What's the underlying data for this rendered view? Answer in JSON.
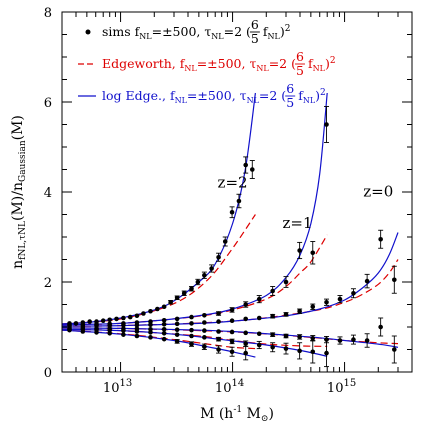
{
  "chart_data": {
    "type": "scatter",
    "x_scale": "log",
    "xlim": [
      3000000000000.0,
      4000000000000000.0
    ],
    "ylim": [
      0,
      8
    ],
    "xlabel": "M (h⁻¹ M⊙)",
    "ylabel": "n_{fNL,τNL}(M)/n_{Gaussian}(M)",
    "x_ticks": [
      {
        "value": 10000000000000.0,
        "base": "10",
        "exp": "13"
      },
      {
        "value": 100000000000000.0,
        "base": "10",
        "exp": "14"
      },
      {
        "value": 1000000000000000.0,
        "base": "10",
        "exp": "15"
      }
    ],
    "y_ticks": [
      "0",
      "2",
      "4",
      "6",
      "8"
    ],
    "y_tick_values": [
      0,
      2,
      4,
      6,
      8
    ],
    "legend": {
      "position": "top-left",
      "entries": [
        {
          "marker": "dot",
          "color": "#000000",
          "name": "sims",
          "sym": "f",
          "sub1": "NL",
          "val1": "=±500,",
          "tau": "τ",
          "sub2": "NL",
          "val2": "=2",
          "frac_num": "6",
          "frac_den": "5",
          "paren_f": "f",
          "paren_sub": "NL",
          "sq": "2"
        },
        {
          "marker": "dashed",
          "color": "#dd0000",
          "name": "Edgeworth,",
          "sym": "f",
          "sub1": "NL",
          "val1": "=±500,",
          "tau": "τ",
          "sub2": "NL",
          "val2": "=2",
          "frac_num": "6",
          "frac_den": "5",
          "paren_f": "f",
          "paren_sub": "NL",
          "sq": "2"
        },
        {
          "marker": "solid",
          "color": "#1111cc",
          "name": "log Edge.,",
          "sym": "f",
          "sub1": "NL",
          "val1": "=±500,",
          "tau": "τ",
          "sub2": "NL",
          "val2": "=2",
          "frac_num": "6",
          "frac_den": "5",
          "paren_f": "f",
          "paren_sub": "NL",
          "sq": "2"
        }
      ]
    },
    "annotations": [
      {
        "text": "z=2",
        "x": 100000000000000.0,
        "y": 4.1
      },
      {
        "text": "z=1",
        "x": 380000000000000.0,
        "y": 3.2
      },
      {
        "text": "z=0",
        "x": 2000000000000000.0,
        "y": 3.9
      }
    ],
    "sims": [
      {
        "name": "z=2 positive",
        "x": [
          3500000000000.0,
          4000000000000.0,
          4600000000000.0,
          5300000000000.0,
          6100000000000.0,
          7000000000000.0,
          8000000000000.0,
          9200000000000.0,
          10600000000000.0,
          12200000000000.0,
          14000000000000.0,
          16000000000000.0,
          18500000000000.0,
          21300000000000.0,
          24500000000000.0,
          28000000000000.0,
          32000000000000.0,
          37000000000000.0,
          43000000000000.0,
          49000000000000.0,
          56000000000000.0,
          65000000000000.0,
          75000000000000.0,
          86000000000000.0,
          99000000000000.0,
          114000000000000.0,
          131000000000000.0,
          150000000000000.0
        ],
        "y": [
          1.08,
          1.08,
          1.1,
          1.12,
          1.12,
          1.14,
          1.16,
          1.18,
          1.2,
          1.22,
          1.25,
          1.3,
          1.35,
          1.4,
          1.45,
          1.55,
          1.65,
          1.75,
          1.85,
          2.0,
          2.15,
          2.3,
          2.55,
          2.9,
          3.55,
          3.8,
          4.6,
          4.5
        ],
        "err": [
          0.02,
          0.02,
          0.02,
          0.02,
          0.02,
          0.02,
          0.02,
          0.02,
          0.02,
          0.02,
          0.02,
          0.02,
          0.03,
          0.03,
          0.03,
          0.04,
          0.04,
          0.05,
          0.05,
          0.06,
          0.07,
          0.08,
          0.09,
          0.1,
          0.12,
          0.15,
          0.18,
          0.2
        ]
      },
      {
        "name": "z=1 positive",
        "x": [
          3500000000000.0,
          4600000000000.0,
          6100000000000.0,
          8000000000000.0,
          10600000000000.0,
          14000000000000.0,
          18500000000000.0,
          24500000000000.0,
          32000000000000.0,
          43000000000000.0,
          56000000000000.0,
          75000000000000.0,
          99000000000000.0,
          131000000000000.0,
          173000000000000.0,
          228000000000000.0,
          300000000000000.0,
          397000000000000.0,
          520000000000000.0,
          690000000000000.0
        ],
        "y": [
          1.05,
          1.05,
          1.06,
          1.07,
          1.08,
          1.1,
          1.12,
          1.15,
          1.18,
          1.22,
          1.26,
          1.3,
          1.38,
          1.5,
          1.62,
          1.8,
          2.0,
          2.7,
          2.65,
          5.5
        ],
        "err": [
          0.02,
          0.02,
          0.02,
          0.02,
          0.02,
          0.02,
          0.02,
          0.02,
          0.02,
          0.03,
          0.03,
          0.04,
          0.05,
          0.06,
          0.08,
          0.1,
          0.12,
          0.18,
          0.25,
          0.4
        ]
      },
      {
        "name": "z=0 positive",
        "x": [
          3500000000000.0,
          4600000000000.0,
          6100000000000.0,
          8000000000000.0,
          10600000000000.0,
          14000000000000.0,
          18500000000000.0,
          24500000000000.0,
          32000000000000.0,
          43000000000000.0,
          56000000000000.0,
          75000000000000.0,
          99000000000000.0,
          131000000000000.0,
          173000000000000.0,
          228000000000000.0,
          300000000000000.0,
          397000000000000.0,
          520000000000000.0,
          690000000000000.0,
          910000000000000.0,
          1200000000000000.0,
          1590000000000000.0,
          2100000000000000.0,
          2780000000000000.0
        ],
        "y": [
          1.02,
          1.02,
          1.03,
          1.03,
          1.04,
          1.04,
          1.05,
          1.06,
          1.07,
          1.08,
          1.1,
          1.12,
          1.14,
          1.18,
          1.2,
          1.24,
          1.28,
          1.35,
          1.45,
          1.55,
          1.62,
          1.75,
          2.02,
          2.95,
          2.05
        ],
        "err": [
          0.01,
          0.01,
          0.01,
          0.01,
          0.01,
          0.01,
          0.01,
          0.01,
          0.02,
          0.02,
          0.02,
          0.02,
          0.02,
          0.03,
          0.03,
          0.04,
          0.04,
          0.05,
          0.06,
          0.07,
          0.08,
          0.1,
          0.15,
          0.2,
          0.3
        ]
      },
      {
        "name": "z=0 negative",
        "x": [
          3500000000000.0,
          4600000000000.0,
          6100000000000.0,
          8000000000000.0,
          10600000000000.0,
          14000000000000.0,
          18500000000000.0,
          24500000000000.0,
          32000000000000.0,
          43000000000000.0,
          56000000000000.0,
          75000000000000.0,
          99000000000000.0,
          131000000000000.0,
          173000000000000.0,
          228000000000000.0,
          300000000000000.0,
          397000000000000.0,
          520000000000000.0,
          690000000000000.0,
          910000000000000.0,
          1200000000000000.0,
          1590000000000000.0,
          2100000000000000.0,
          2780000000000000.0
        ],
        "y": [
          0.98,
          0.98,
          0.97,
          0.97,
          0.96,
          0.96,
          0.95,
          0.95,
          0.94,
          0.93,
          0.92,
          0.9,
          0.89,
          0.87,
          0.85,
          0.83,
          0.8,
          0.78,
          0.75,
          0.72,
          0.7,
          0.72,
          0.7,
          1.0,
          0.5
        ],
        "err": [
          0.01,
          0.01,
          0.01,
          0.01,
          0.01,
          0.01,
          0.01,
          0.01,
          0.02,
          0.02,
          0.02,
          0.02,
          0.02,
          0.03,
          0.03,
          0.04,
          0.04,
          0.05,
          0.06,
          0.07,
          0.08,
          0.1,
          0.15,
          0.2,
          0.3
        ]
      },
      {
        "name": "z=1 negative",
        "x": [
          3500000000000.0,
          4600000000000.0,
          6100000000000.0,
          8000000000000.0,
          10600000000000.0,
          14000000000000.0,
          18500000000000.0,
          24500000000000.0,
          32000000000000.0,
          43000000000000.0,
          56000000000000.0,
          75000000000000.0,
          99000000000000.0,
          131000000000000.0,
          173000000000000.0,
          228000000000000.0,
          300000000000000.0,
          397000000000000.0,
          520000000000000.0,
          690000000000000.0
        ],
        "y": [
          0.95,
          0.95,
          0.94,
          0.93,
          0.92,
          0.9,
          0.88,
          0.86,
          0.83,
          0.8,
          0.77,
          0.73,
          0.68,
          0.63,
          0.6,
          0.55,
          0.52,
          0.47,
          0.45,
          0.42
        ],
        "err": [
          0.02,
          0.02,
          0.02,
          0.02,
          0.02,
          0.02,
          0.02,
          0.02,
          0.02,
          0.03,
          0.03,
          0.04,
          0.05,
          0.06,
          0.08,
          0.1,
          0.12,
          0.18,
          0.25,
          0.3
        ]
      },
      {
        "name": "z=2 negative",
        "x": [
          3500000000000.0,
          4600000000000.0,
          6100000000000.0,
          8000000000000.0,
          10600000000000.0,
          14000000000000.0,
          18500000000000.0,
          24500000000000.0,
          32000000000000.0,
          43000000000000.0,
          56000000000000.0,
          75000000000000.0,
          99000000000000.0,
          131000000000000.0
        ],
        "y": [
          0.93,
          0.9,
          0.88,
          0.86,
          0.83,
          0.8,
          0.77,
          0.73,
          0.68,
          0.62,
          0.56,
          0.5,
          0.45,
          0.42
        ],
        "err": [
          0.02,
          0.02,
          0.02,
          0.02,
          0.02,
          0.02,
          0.03,
          0.03,
          0.04,
          0.05,
          0.06,
          0.08,
          0.1,
          0.15
        ]
      }
    ],
    "curves_blue": [
      {
        "name": "z=2 positive",
        "x": [
          3000000000000.0,
          5000000000000.0,
          10000000000000.0,
          20000000000000.0,
          30000000000000.0,
          50000000000000.0,
          70000000000000.0,
          100000000000000.0,
          130000000000000.0,
          160000000000000.0
        ],
        "y": [
          1.07,
          1.1,
          1.2,
          1.38,
          1.58,
          2.0,
          2.4,
          3.3,
          4.5,
          6.2
        ]
      },
      {
        "name": "z=1 positive",
        "x": [
          3000000000000.0,
          10000000000000.0,
          30000000000000.0,
          60000000000000.0,
          100000000000000.0,
          200000000000000.0,
          300000000000000.0,
          400000000000000.0,
          500000000000000.0,
          600000000000000.0,
          700000000000000.0
        ],
        "y": [
          1.05,
          1.08,
          1.18,
          1.28,
          1.4,
          1.7,
          2.1,
          2.6,
          3.3,
          4.4,
          6.2
        ]
      },
      {
        "name": "z=0 positive",
        "x": [
          3000000000000.0,
          10000000000000.0,
          50000000000000.0,
          100000000000000.0,
          300000000000000.0,
          600000000000000.0,
          1000000000000000.0,
          1500000000000000.0,
          2000000000000000.0,
          2500000000000000.0,
          3000000000000000.0
        ],
        "y": [
          1.02,
          1.03,
          1.08,
          1.13,
          1.25,
          1.4,
          1.6,
          1.9,
          2.2,
          2.6,
          3.1
        ]
      },
      {
        "name": "z=0 negative",
        "x": [
          3000000000000.0,
          10000000000000.0,
          50000000000000.0,
          100000000000000.0,
          300000000000000.0,
          600000000000000.0,
          1000000000000000.0,
          2000000000000000.0,
          3000000000000000.0
        ],
        "y": [
          0.98,
          0.97,
          0.93,
          0.9,
          0.82,
          0.76,
          0.7,
          0.62,
          0.55
        ]
      },
      {
        "name": "z=1 negative",
        "x": [
          3000000000000.0,
          10000000000000.0,
          30000000000000.0,
          100000000000000.0,
          200000000000000.0,
          400000000000000.0,
          700000000000000.0
        ],
        "y": [
          0.95,
          0.92,
          0.84,
          0.69,
          0.6,
          0.48,
          0.35
        ]
      },
      {
        "name": "z=2 negative",
        "x": [
          3000000000000.0,
          10000000000000.0,
          30000000000000.0,
          60000000000000.0,
          100000000000000.0,
          160000000000000.0
        ],
        "y": [
          0.93,
          0.84,
          0.7,
          0.56,
          0.45,
          0.33
        ]
      }
    ],
    "curves_red": [
      {
        "name": "z=2 positive",
        "x": [
          3000000000000.0,
          10000000000000.0,
          30000000000000.0,
          60000000000000.0,
          100000000000000.0,
          160000000000000.0
        ],
        "y": [
          1.07,
          1.18,
          1.52,
          2.05,
          2.75,
          3.5
        ]
      },
      {
        "name": "z=1 positive",
        "x": [
          3000000000000.0,
          10000000000000.0,
          50000000000000.0,
          100000000000000.0,
          200000000000000.0,
          300000000000000.0,
          400000000000000.0,
          500000000000000.0,
          700000000000000.0
        ],
        "y": [
          1.05,
          1.08,
          1.24,
          1.38,
          1.62,
          1.9,
          2.2,
          2.45,
          3.05
        ]
      },
      {
        "name": "z=0 positive",
        "x": [
          3000000000000.0,
          10000000000000.0,
          100000000000000.0,
          500000000000000.0,
          1000000000000000.0,
          1500000000000000.0,
          2000000000000000.0,
          2500000000000000.0,
          3000000000000000.0
        ],
        "y": [
          1.02,
          1.03,
          1.13,
          1.35,
          1.55,
          1.75,
          1.95,
          2.2,
          2.5
        ]
      },
      {
        "name": "z=0 negative",
        "x": [
          3000000000000.0,
          10000000000000.0,
          100000000000000.0,
          500000000000000.0,
          1000000000000000.0,
          2000000000000000.0,
          3000000000000000.0
        ],
        "y": [
          0.98,
          0.97,
          0.89,
          0.77,
          0.7,
          0.65,
          0.63
        ]
      },
      {
        "name": "z=1 negative",
        "x": [
          3000000000000.0,
          10000000000000.0,
          50000000000000.0,
          100000000000000.0,
          200000000000000.0,
          400000000000000.0,
          700000000000000.0
        ],
        "y": [
          0.95,
          0.92,
          0.8,
          0.7,
          0.62,
          0.58,
          0.57
        ]
      },
      {
        "name": "z=2 negative",
        "x": [
          3000000000000.0,
          10000000000000.0,
          30000000000000.0,
          60000000000000.0,
          100000000000000.0,
          160000000000000.0
        ],
        "y": [
          0.93,
          0.85,
          0.72,
          0.62,
          0.55,
          0.52
        ]
      }
    ]
  }
}
